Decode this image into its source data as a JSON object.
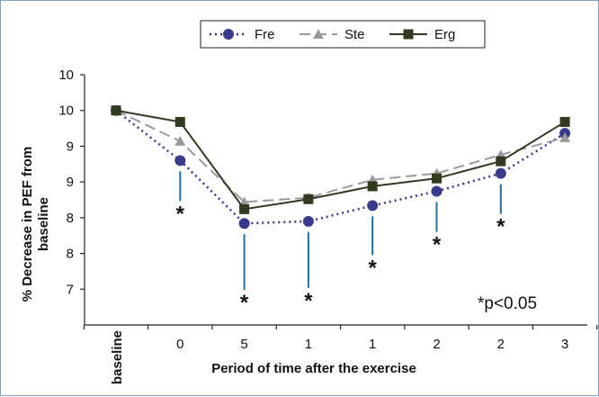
{
  "chart_data": {
    "type": "line",
    "title": "",
    "xlabel": "Period of time after the exercise",
    "ylabel": "% Decrease in PEF from baseline",
    "categories": [
      "baseline",
      "0",
      "5",
      "1",
      "1",
      "2",
      "2",
      "3"
    ],
    "y_tick_labels": [
      "10",
      "10",
      "9",
      "9",
      "8",
      "8",
      "7"
    ],
    "ylim": [
      7,
      10.5
    ],
    "y_tick_values": [
      10.5,
      10,
      9.5,
      9,
      8.5,
      8,
      7.5
    ],
    "grid": false,
    "legend_position": "top",
    "series": [
      {
        "name": "Fre",
        "style": "dotted",
        "marker": "circle",
        "color": "#3a3a8c",
        "values": [
          10,
          9.3,
          8.42,
          8.45,
          8.67,
          8.87,
          9.12,
          9.68
        ]
      },
      {
        "name": "Ste",
        "style": "dashed",
        "marker": "triangle",
        "color": "#9a9a9a",
        "values": [
          10,
          9.57,
          8.72,
          8.78,
          9.03,
          9.12,
          9.38,
          9.62
        ]
      },
      {
        "name": "Erg",
        "style": "solid",
        "marker": "square",
        "color": "#2f3a1f",
        "values": [
          10,
          9.84,
          8.62,
          8.76,
          8.94,
          9.05,
          9.29,
          9.84
        ]
      }
    ],
    "annotations": {
      "significance_marker": "*",
      "significant_category_indices": [
        1,
        2,
        3,
        4,
        5,
        6
      ],
      "note": "*p<0.05"
    }
  }
}
